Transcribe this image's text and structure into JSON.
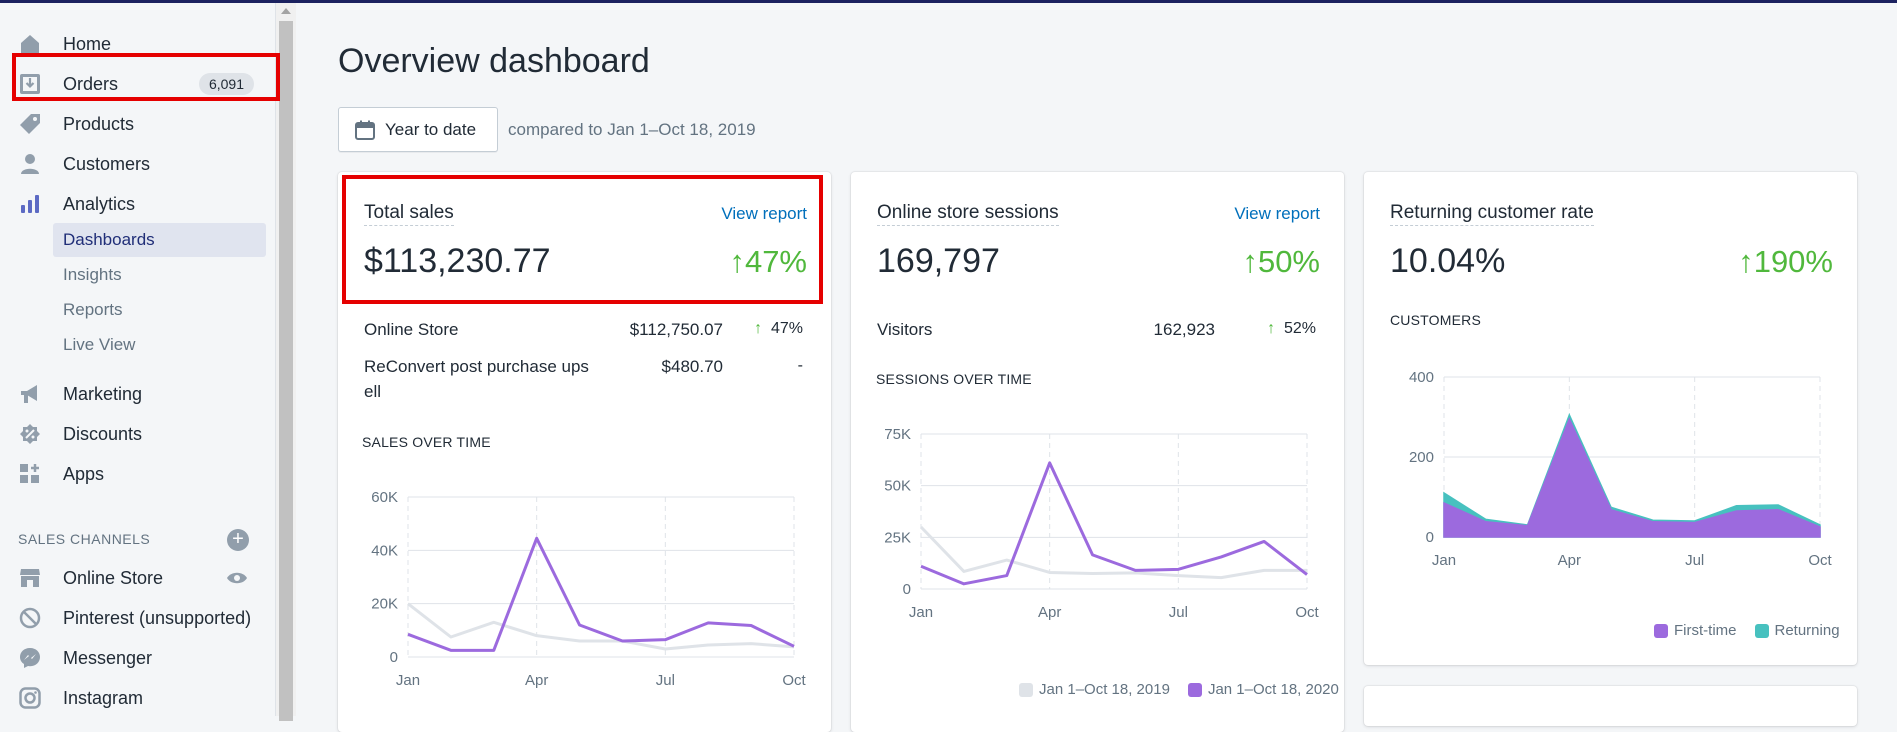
{
  "sidebar": {
    "items": [
      {
        "label": "Home",
        "icon": "home-icon"
      },
      {
        "label": "Orders",
        "icon": "orders-icon",
        "badge": "6,091"
      },
      {
        "label": "Products",
        "icon": "tag-icon"
      },
      {
        "label": "Customers",
        "icon": "person-icon"
      },
      {
        "label": "Analytics",
        "icon": "bar-chart-icon"
      }
    ],
    "analytics_sub": [
      "Dashboards",
      "Insights",
      "Reports",
      "Live View"
    ],
    "items2": [
      {
        "label": "Marketing",
        "icon": "megaphone-icon"
      },
      {
        "label": "Discounts",
        "icon": "discount-icon"
      },
      {
        "label": "Apps",
        "icon": "apps-icon"
      }
    ],
    "sales_channels_title": "SALES CHANNELS",
    "channels": [
      {
        "label": "Online Store",
        "icon": "store-icon"
      },
      {
        "label": "Pinterest (unsupported)",
        "icon": "blocked-icon"
      },
      {
        "label": "Messenger",
        "icon": "messenger-icon"
      },
      {
        "label": "Instagram",
        "icon": "instagram-icon"
      }
    ]
  },
  "header": {
    "title": "Overview dashboard",
    "date_button": "Year to date",
    "compare": "compared to Jan 1–Oct 18, 2019"
  },
  "colors": {
    "accent": "#9c6ade",
    "compare_line": "#dfe3e8",
    "returning": "#47c1bf",
    "positive": "#50b83c",
    "link": "#006fbb"
  },
  "cards": {
    "total_sales": {
      "title": "Total sales",
      "link": "View report",
      "value": "$113,230.77",
      "delta": "47%",
      "rows": [
        {
          "label": "Online Store",
          "value": "$112,750.07",
          "delta": "47%"
        },
        {
          "label": "ReConvert post purchase ups",
          "label2": "ell",
          "value": "$480.70",
          "delta": "-"
        }
      ],
      "chart_title": "SALES OVER TIME"
    },
    "sessions": {
      "title": "Online store sessions",
      "link": "View report",
      "value": "169,797",
      "delta": "50%",
      "rows": [
        {
          "label": "Visitors",
          "value": "162,923",
          "delta": "52%"
        }
      ],
      "chart_title": "SESSIONS OVER TIME",
      "legend": [
        "Jan 1–Oct 18, 2019",
        "Jan 1–Oct 18, 2020"
      ]
    },
    "returning": {
      "title": "Returning customer rate",
      "value": "10.04%",
      "delta": "190%",
      "chart_title": "CUSTOMERS",
      "legend": [
        "First-time",
        "Returning"
      ]
    }
  },
  "chart_data": [
    {
      "type": "line",
      "title": "SALES OVER TIME",
      "x": [
        "Jan",
        "Feb",
        "Mar",
        "Apr",
        "May",
        "Jun",
        "Jul",
        "Aug",
        "Sep",
        "Oct"
      ],
      "x_ticks": [
        "Jan",
        "Apr",
        "Jul",
        "Oct"
      ],
      "y_ticks": [
        "0",
        "20K",
        "40K",
        "60K"
      ],
      "ylim": [
        0,
        60000
      ],
      "series": [
        {
          "name": "Jan 1–Oct 18, 2019",
          "values": [
            20000,
            7500,
            13000,
            8000,
            6000,
            6000,
            3000,
            4500,
            5000,
            3800
          ]
        },
        {
          "name": "Jan 1–Oct 18, 2020",
          "values": [
            8500,
            2500,
            2500,
            44500,
            12000,
            6000,
            6500,
            12800,
            11800,
            4000
          ]
        }
      ]
    },
    {
      "type": "line",
      "title": "SESSIONS OVER TIME",
      "x": [
        "Jan",
        "Feb",
        "Mar",
        "Apr",
        "May",
        "Jun",
        "Jul",
        "Aug",
        "Sep",
        "Oct"
      ],
      "x_ticks": [
        "Jan",
        "Apr",
        "Jul",
        "Oct"
      ],
      "y_ticks": [
        "0",
        "25K",
        "50K",
        "75K"
      ],
      "ylim": [
        0,
        75000
      ],
      "series": [
        {
          "name": "Jan 1–Oct 18, 2019",
          "values": [
            30000,
            8500,
            14000,
            8000,
            7500,
            7800,
            6500,
            5500,
            9000,
            9000
          ]
        },
        {
          "name": "Jan 1–Oct 18, 2020",
          "values": [
            11000,
            2500,
            6500,
            61000,
            16500,
            9000,
            9500,
            15500,
            23000,
            7000
          ]
        }
      ],
      "legend": "bottom"
    },
    {
      "type": "area",
      "title": "CUSTOMERS",
      "x": [
        "Jan",
        "Feb",
        "Mar",
        "Apr",
        "May",
        "Jun",
        "Jul",
        "Aug",
        "Sep",
        "Oct"
      ],
      "x_ticks": [
        "Jan",
        "Apr",
        "Jul",
        "Oct"
      ],
      "y_ticks": [
        "0",
        "200",
        "400"
      ],
      "ylim": [
        0,
        400
      ],
      "series": [
        {
          "name": "First-time",
          "values": [
            85,
            38,
            28,
            295,
            68,
            38,
            36,
            65,
            68,
            25
          ]
        },
        {
          "name": "Returning",
          "values": [
            110,
            44,
            30,
            305,
            74,
            42,
            40,
            78,
            80,
            30
          ]
        }
      ],
      "legend": "bottom-right"
    }
  ]
}
